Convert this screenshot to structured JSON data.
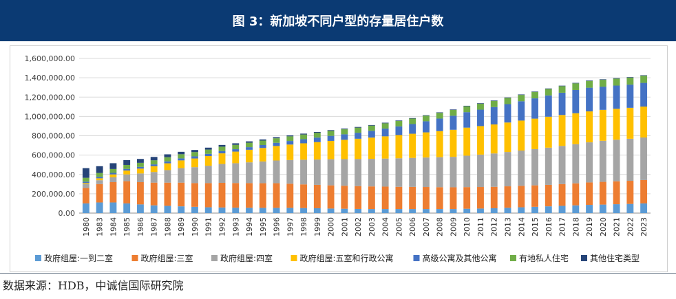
{
  "banner": {
    "title": "图 3：新加坡不同户型的存量居住户数",
    "background": "#0b3a73"
  },
  "source": "数据来源：HDB，中诚信国际研究院",
  "chart_data": {
    "type": "bar",
    "stacked": true,
    "title": "图 3：新加坡不同户型的存量居住户数",
    "xlabel": "",
    "ylabel": "",
    "ylim": [
      0,
      1600000
    ],
    "yticks": [
      "0.00",
      "200,000.00",
      "400,000.00",
      "600,000.00",
      "800,000.00",
      "1,000,000.00",
      "1,200,000.00",
      "1,400,000.00",
      "1,600,000.00"
    ],
    "grid": true,
    "legend_position": "bottom",
    "categories": [
      "1980",
      "1983",
      "1984",
      "1985",
      "1986",
      "1987",
      "1988",
      "1989",
      "1990",
      "1991",
      "1992",
      "1993",
      "1994",
      "1995",
      "1996",
      "1997",
      "1998",
      "1999",
      "2000",
      "2001",
      "2002",
      "2003",
      "2004",
      "2005",
      "2006",
      "2007",
      "2008",
      "2009",
      "2010",
      "2011",
      "2012",
      "2013",
      "2014",
      "2015",
      "2016",
      "2017",
      "2018",
      "2019",
      "2020",
      "2021",
      "2022",
      "2023"
    ],
    "series": [
      {
        "name": "政府组屋:一到二室",
        "color": "#5b9bd5",
        "values": [
          100000,
          110000,
          110000,
          100000,
          90000,
          80000,
          75000,
          70000,
          65000,
          60000,
          58000,
          56000,
          55000,
          54000,
          54000,
          54000,
          52000,
          50000,
          47000,
          45000,
          43000,
          42000,
          42000,
          42000,
          42000,
          42000,
          42000,
          42000,
          45000,
          47000,
          50000,
          55000,
          60000,
          65000,
          70000,
          75000,
          80000,
          85000,
          88000,
          92000,
          95000,
          100000
        ]
      },
      {
        "name": "政府组屋:三室",
        "color": "#ed7d31",
        "values": [
          160000,
          190000,
          210000,
          230000,
          230000,
          235000,
          240000,
          245000,
          245000,
          250000,
          255000,
          255000,
          255000,
          255000,
          255000,
          250000,
          245000,
          242000,
          240000,
          238000,
          236000,
          234000,
          232000,
          230000,
          229000,
          228000,
          226000,
          225000,
          224000,
          223000,
          222000,
          222000,
          222000,
          222000,
          222000,
          225000,
          228000,
          232000,
          235000,
          237000,
          239000,
          242000
        ]
      },
      {
        "name": "政府组屋:四室",
        "color": "#a5a5a5",
        "values": [
          40000,
          40000,
          50000,
          70000,
          90000,
          110000,
          130000,
          150000,
          165000,
          180000,
          195000,
          205000,
          215000,
          225000,
          235000,
          245000,
          255000,
          262000,
          270000,
          275000,
          280000,
          285000,
          290000,
          295000,
          300000,
          305000,
          310000,
          315000,
          325000,
          335000,
          345000,
          355000,
          365000,
          375000,
          385000,
          395000,
          405000,
          415000,
          425000,
          430000,
          435000,
          440000
        ]
      },
      {
        "name": "政府组屋:五室和行政公寓",
        "color": "#ffc000",
        "values": [
          10000,
          20000,
          30000,
          40000,
          50000,
          60000,
          70000,
          80000,
          90000,
          100000,
          110000,
          120000,
          130000,
          140000,
          150000,
          160000,
          170000,
          180000,
          190000,
          200000,
          210000,
          220000,
          230000,
          240000,
          250000,
          260000,
          270000,
          280000,
          290000,
          295000,
          300000,
          305000,
          310000,
          315000,
          320000,
          320000,
          320000,
          320000,
          320000,
          320000,
          320000,
          320000
        ]
      },
      {
        "name": "高级公寓及其他公寓",
        "color": "#4472c4",
        "values": [
          15000,
          15000,
          16000,
          17000,
          18000,
          19000,
          20000,
          21000,
          22000,
          23000,
          24000,
          25000,
          27000,
          30000,
          33000,
          37000,
          42000,
          47000,
          52000,
          57000,
          62000,
          70000,
          80000,
          90000,
          100000,
          115000,
          130000,
          145000,
          160000,
          170000,
          180000,
          190000,
          200000,
          210000,
          220000,
          230000,
          240000,
          245000,
          240000,
          240000,
          240000,
          245000
        ]
      },
      {
        "name": "有地私人住宅",
        "color": "#70ad47",
        "values": [
          40000,
          40000,
          40000,
          41000,
          42000,
          42000,
          43000,
          43000,
          44000,
          44000,
          45000,
          45000,
          46000,
          46000,
          47000,
          48000,
          49000,
          50000,
          51000,
          52000,
          53000,
          54000,
          55000,
          56000,
          57000,
          58000,
          59000,
          60000,
          61000,
          62000,
          63000,
          64000,
          65000,
          66000,
          67000,
          68000,
          69000,
          70000,
          71000,
          72000,
          73000,
          74000
        ]
      },
      {
        "name": "其他住宅类型",
        "color": "#264478",
        "values": [
          100000,
          70000,
          60000,
          50000,
          40000,
          35000,
          30000,
          25000,
          22000,
          20000,
          18000,
          16000,
          14000,
          12000,
          11000,
          10000,
          9000,
          8000,
          8000,
          7000,
          7000,
          6000,
          6000,
          5000,
          5000,
          5000,
          5000,
          5000,
          5000,
          5000,
          5000,
          5000,
          5000,
          5000,
          5000,
          5000,
          5000,
          5000,
          5000,
          5000,
          5000,
          5000
        ]
      }
    ]
  }
}
